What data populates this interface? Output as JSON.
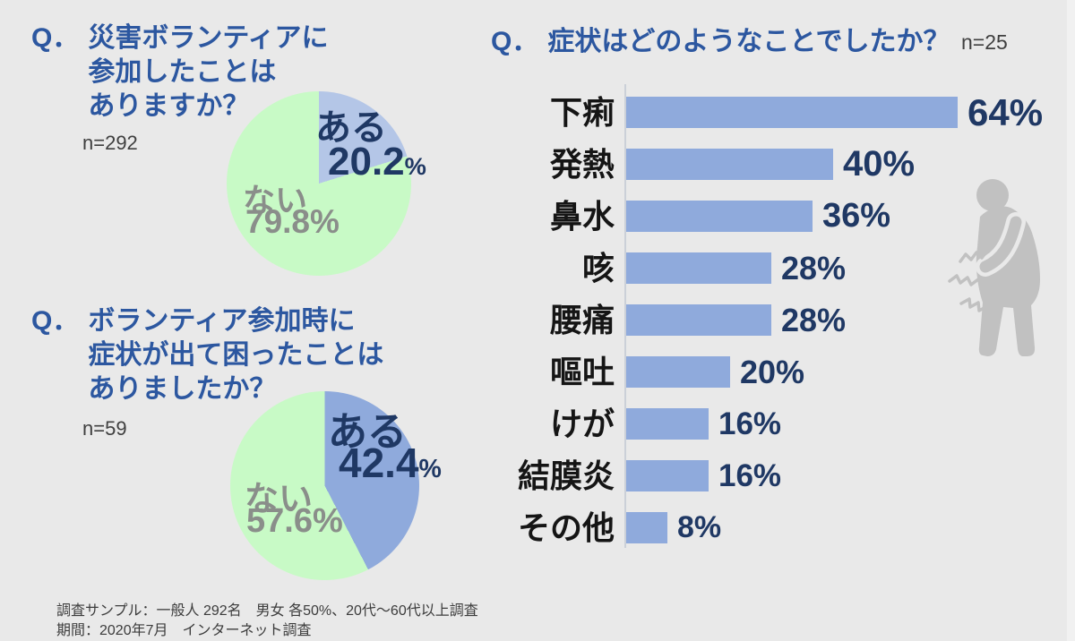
{
  "colors": {
    "background": "#E9E9E9",
    "question_blue": "#2C57A0",
    "value_navy": "#1F3864",
    "gray_label": "#8A8E8A",
    "pie_green": "#C8FAC6",
    "pie1_blue": "#B4C6E7",
    "pie2_blue": "#8FAADC",
    "bar_blue": "#8FAADC",
    "person_gray": "#C1C1C1"
  },
  "chart_data": [
    {
      "type": "pie",
      "question": {
        "prefix": "Q．",
        "lines": [
          "災害ボランティアに",
          "参加したことは",
          "ありますか？"
        ]
      },
      "n": "n=292",
      "labels": [
        "ある",
        "ない"
      ],
      "values": [
        20.2,
        79.8
      ],
      "values_display": [
        "20.2",
        "79.8%"
      ],
      "unit": "%",
      "colors": [
        "#B4C6E7",
        "#C8FAC6"
      ],
      "start_angle": "top, clockwise"
    },
    {
      "type": "pie",
      "question": {
        "prefix": "Q．",
        "lines": [
          "ボランティア参加時に",
          "症状が出て困ったことは",
          "ありましたか？"
        ]
      },
      "n": "n=59",
      "labels": [
        "ある",
        "ない"
      ],
      "values": [
        42.4,
        57.6
      ],
      "values_display": [
        "42.4",
        "57.6%"
      ],
      "unit": "%",
      "colors": [
        "#8FAADC",
        "#C8FAC6"
      ],
      "start_angle": "top, clockwise"
    },
    {
      "type": "bar",
      "orientation": "horizontal",
      "question": {
        "prefix": "Q．",
        "lines": [
          "症状はどのようなことでしたか？"
        ]
      },
      "n": "n=25",
      "categories": [
        "下痢",
        "発熱",
        "鼻水",
        "咳",
        "腰痛",
        "嘔吐",
        "けが",
        "結膜炎",
        "その他"
      ],
      "values": [
        64,
        40,
        36,
        28,
        28,
        20,
        16,
        16,
        8
      ],
      "unit": "%",
      "xlim": [
        0,
        70
      ],
      "grid": false,
      "legend": "none"
    }
  ],
  "icons": {
    "person": "pain-person-icon"
  },
  "footer": {
    "line1": "調査サンプル：一般人 292名　男女 各50%、20代～60代以上調査",
    "line2": "期間：2020年7月　インターネット調査"
  }
}
